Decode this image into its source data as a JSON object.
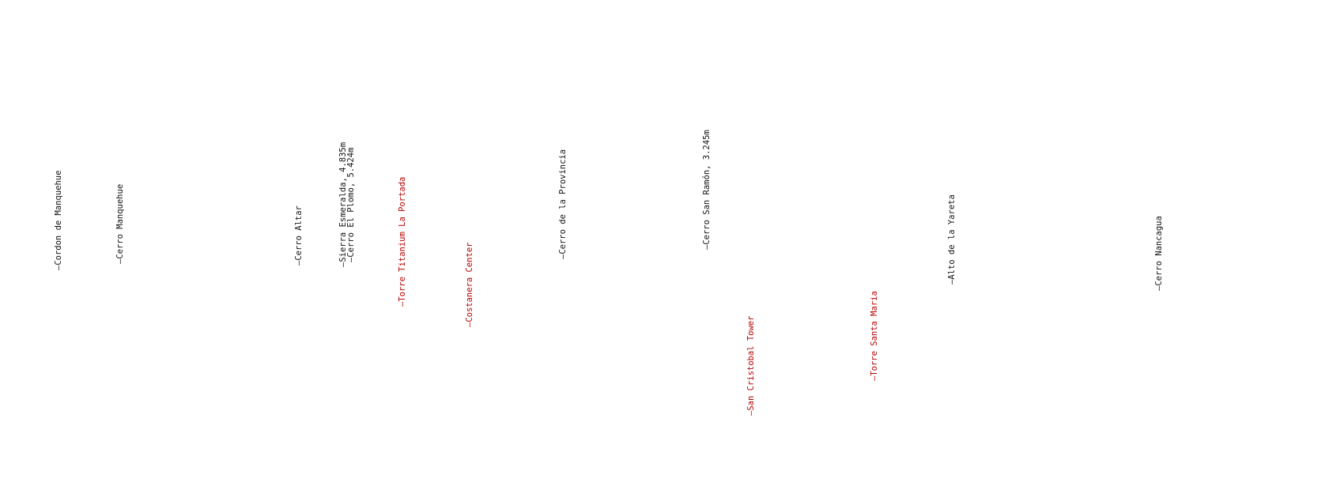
{
  "colors": {
    "mountain": "#111111",
    "building": "#b30000",
    "background": "#ffffff"
  },
  "labels": [
    {
      "id": "cordon-de-manquehue",
      "text": "—Cordon de Manquehue",
      "kind": "mountain"
    },
    {
      "id": "cerro-manquehue",
      "text": "—Cerro Manquehue",
      "kind": "mountain"
    },
    {
      "id": "cerro-altar",
      "text": "—Cerro Altar",
      "kind": "mountain"
    },
    {
      "id": "sierra-esmeralda",
      "text": "—Sierra Esmeralda, 4.835m",
      "kind": "mountain"
    },
    {
      "id": "cerro-el-plomo",
      "text": "—Cerro El Plomo, 5.424m",
      "kind": "mountain"
    },
    {
      "id": "torre-titanium",
      "text": "—Torre Titanium La Portada",
      "kind": "building"
    },
    {
      "id": "costanera-center",
      "text": "—Costanera Center",
      "kind": "building"
    },
    {
      "id": "cerro-de-la-provincia",
      "text": "—Cerro de la Provincia",
      "kind": "mountain"
    },
    {
      "id": "cerro-san-ramon",
      "text": "—Cerro San Ramón, 3.245m",
      "kind": "mountain"
    },
    {
      "id": "san-cristobal-tower",
      "text": "—San Cristobal Tower",
      "kind": "building"
    },
    {
      "id": "torre-santa-maria",
      "text": "—Torre Santa Maria",
      "kind": "building"
    },
    {
      "id": "alto-de-la-yareta",
      "text": "—Alto de la Yareta",
      "kind": "mountain"
    },
    {
      "id": "cerro-nancagua",
      "text": "—Cerro Nancagua",
      "kind": "mountain"
    }
  ]
}
